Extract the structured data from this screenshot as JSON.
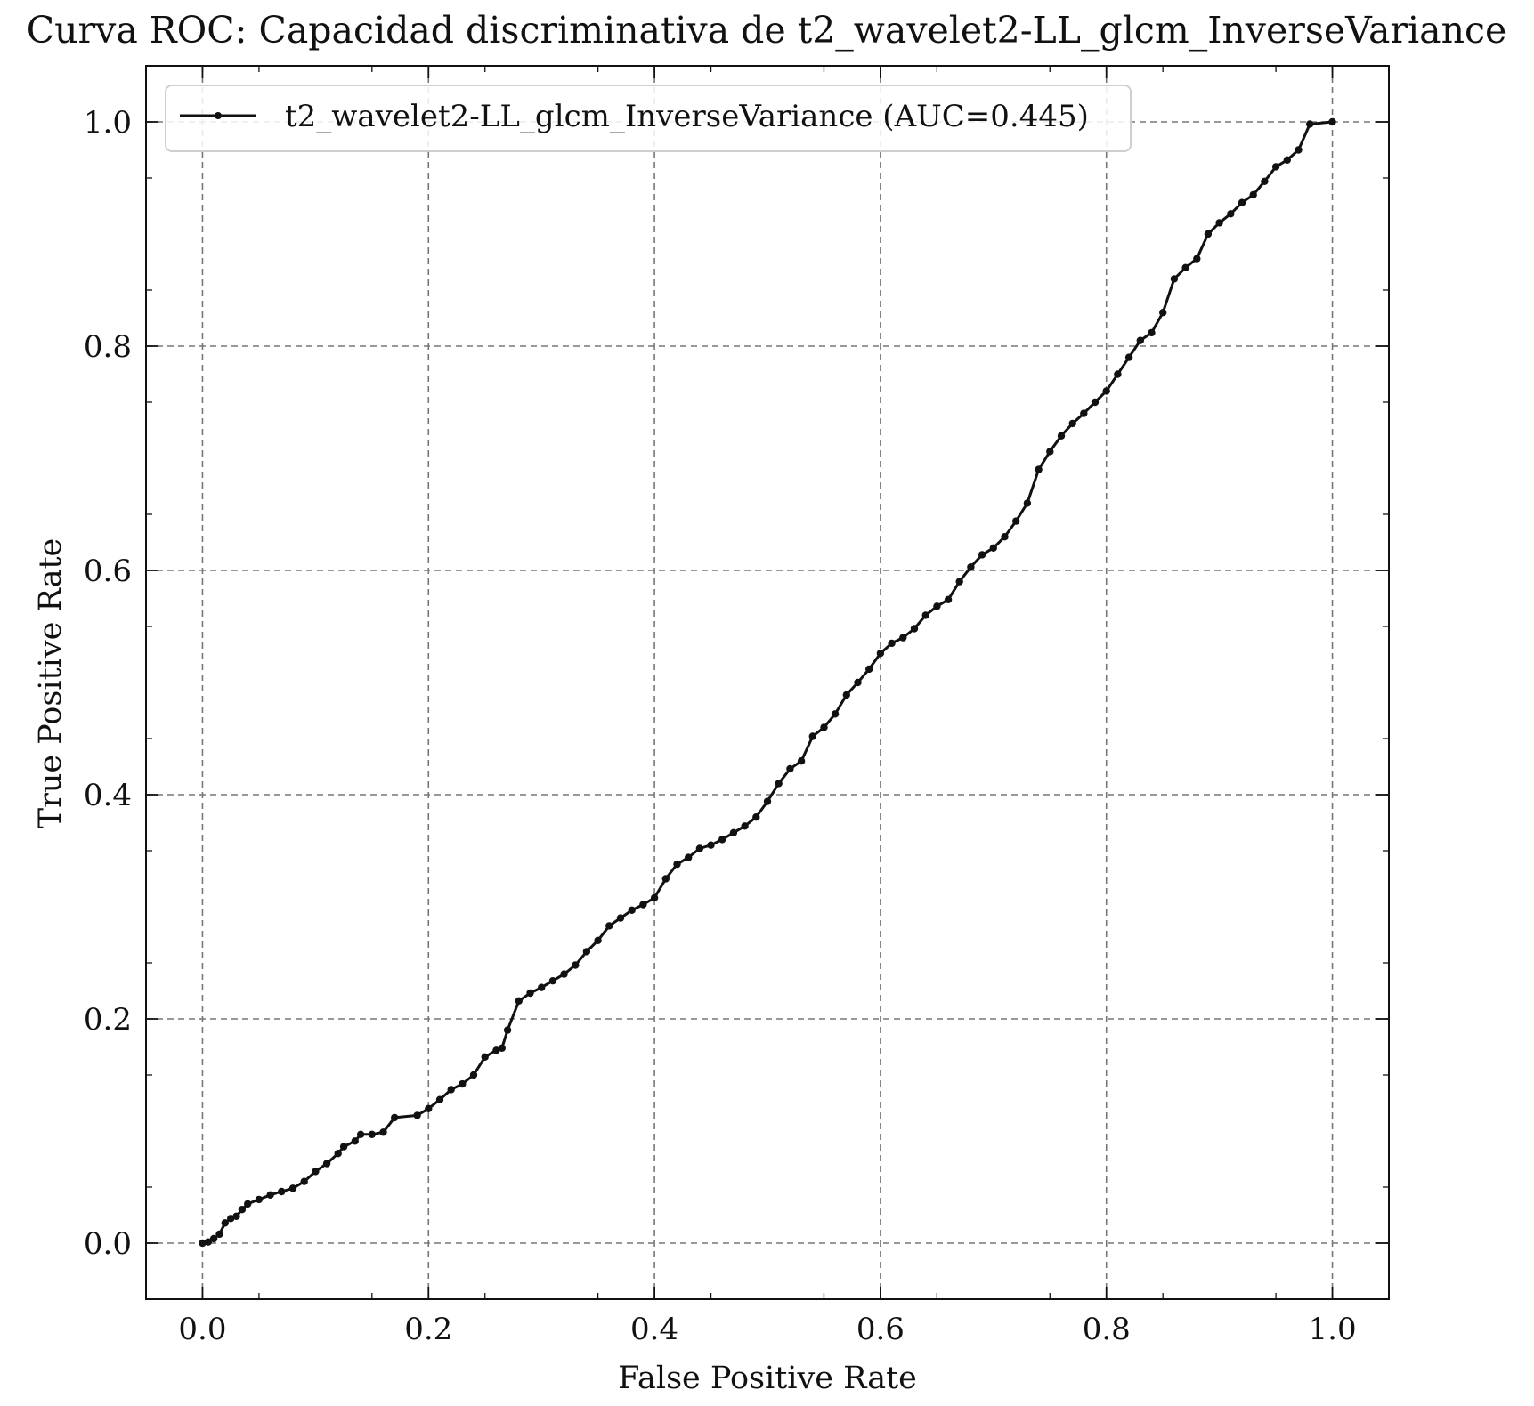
{
  "chart_data": {
    "type": "line",
    "title": "Curva ROC: Capacidad discriminativa de t2_wavelet2-LL_glcm_InverseVariance",
    "xlabel": "False Positive Rate",
    "ylabel": "True Positive Rate",
    "xlim": [
      -0.05,
      1.05
    ],
    "ylim": [
      -0.05,
      1.05
    ],
    "xticks": [
      "0.0",
      "0.2",
      "0.4",
      "0.6",
      "0.8",
      "1.0"
    ],
    "yticks": [
      "0.0",
      "0.2",
      "0.4",
      "0.6",
      "0.8",
      "1.0"
    ],
    "grid": true,
    "legend_position": "top-left",
    "series": [
      {
        "name": "t2_wavelet2-LL_glcm_InverseVariance (AUC=0.445)",
        "color": "#111111",
        "marker": "circle",
        "points": [
          [
            0.0,
            0.0
          ],
          [
            0.005,
            0.001
          ],
          [
            0.01,
            0.004
          ],
          [
            0.015,
            0.008
          ],
          [
            0.02,
            0.018
          ],
          [
            0.025,
            0.022
          ],
          [
            0.03,
            0.024
          ],
          [
            0.035,
            0.03
          ],
          [
            0.04,
            0.035
          ],
          [
            0.05,
            0.039
          ],
          [
            0.06,
            0.043
          ],
          [
            0.07,
            0.046
          ],
          [
            0.08,
            0.049
          ],
          [
            0.09,
            0.055
          ],
          [
            0.1,
            0.064
          ],
          [
            0.11,
            0.071
          ],
          [
            0.12,
            0.08
          ],
          [
            0.125,
            0.086
          ],
          [
            0.135,
            0.091
          ],
          [
            0.14,
            0.097
          ],
          [
            0.15,
            0.097
          ],
          [
            0.16,
            0.099
          ],
          [
            0.17,
            0.112
          ],
          [
            0.19,
            0.114
          ],
          [
            0.2,
            0.12
          ],
          [
            0.21,
            0.128
          ],
          [
            0.22,
            0.137
          ],
          [
            0.23,
            0.142
          ],
          [
            0.24,
            0.15
          ],
          [
            0.25,
            0.166
          ],
          [
            0.26,
            0.172
          ],
          [
            0.265,
            0.174
          ],
          [
            0.27,
            0.19
          ],
          [
            0.28,
            0.216
          ],
          [
            0.29,
            0.223
          ],
          [
            0.3,
            0.228
          ],
          [
            0.31,
            0.234
          ],
          [
            0.32,
            0.24
          ],
          [
            0.33,
            0.248
          ],
          [
            0.34,
            0.26
          ],
          [
            0.35,
            0.27
          ],
          [
            0.36,
            0.283
          ],
          [
            0.37,
            0.29
          ],
          [
            0.38,
            0.297
          ],
          [
            0.39,
            0.302
          ],
          [
            0.4,
            0.308
          ],
          [
            0.41,
            0.325
          ],
          [
            0.42,
            0.338
          ],
          [
            0.43,
            0.344
          ],
          [
            0.44,
            0.352
          ],
          [
            0.45,
            0.355
          ],
          [
            0.46,
            0.36
          ],
          [
            0.47,
            0.366
          ],
          [
            0.48,
            0.372
          ],
          [
            0.49,
            0.38
          ],
          [
            0.5,
            0.394
          ],
          [
            0.51,
            0.41
          ],
          [
            0.52,
            0.423
          ],
          [
            0.53,
            0.43
          ],
          [
            0.54,
            0.452
          ],
          [
            0.55,
            0.46
          ],
          [
            0.56,
            0.472
          ],
          [
            0.57,
            0.489
          ],
          [
            0.58,
            0.5
          ],
          [
            0.59,
            0.512
          ],
          [
            0.6,
            0.526
          ],
          [
            0.61,
            0.535
          ],
          [
            0.62,
            0.54
          ],
          [
            0.63,
            0.548
          ],
          [
            0.64,
            0.56
          ],
          [
            0.65,
            0.568
          ],
          [
            0.66,
            0.574
          ],
          [
            0.67,
            0.59
          ],
          [
            0.68,
            0.603
          ],
          [
            0.69,
            0.614
          ],
          [
            0.7,
            0.62
          ],
          [
            0.71,
            0.63
          ],
          [
            0.72,
            0.644
          ],
          [
            0.73,
            0.66
          ],
          [
            0.74,
            0.69
          ],
          [
            0.75,
            0.706
          ],
          [
            0.76,
            0.72
          ],
          [
            0.77,
            0.731
          ],
          [
            0.78,
            0.74
          ],
          [
            0.79,
            0.75
          ],
          [
            0.8,
            0.76
          ],
          [
            0.81,
            0.775
          ],
          [
            0.82,
            0.79
          ],
          [
            0.83,
            0.805
          ],
          [
            0.84,
            0.812
          ],
          [
            0.85,
            0.83
          ],
          [
            0.86,
            0.86
          ],
          [
            0.87,
            0.87
          ],
          [
            0.88,
            0.878
          ],
          [
            0.89,
            0.9
          ],
          [
            0.9,
            0.91
          ],
          [
            0.91,
            0.918
          ],
          [
            0.92,
            0.928
          ],
          [
            0.93,
            0.935
          ],
          [
            0.94,
            0.947
          ],
          [
            0.95,
            0.96
          ],
          [
            0.96,
            0.966
          ],
          [
            0.97,
            0.975
          ],
          [
            0.98,
            0.998
          ],
          [
            1.0,
            1.0
          ]
        ]
      }
    ]
  }
}
